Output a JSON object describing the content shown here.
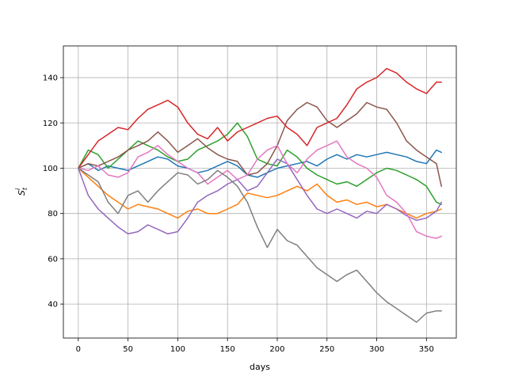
{
  "chart_data": {
    "type": "line",
    "title": "",
    "xlabel": "days",
    "ylabel_base": "S",
    "ylabel_sub": "t",
    "ylabel_sup": "i",
    "xlim": [
      -15,
      380
    ],
    "ylim": [
      25,
      154
    ],
    "xticks": [
      0,
      50,
      100,
      150,
      200,
      250,
      300,
      350
    ],
    "yticks": [
      40,
      60,
      80,
      100,
      120,
      140
    ],
    "grid": true,
    "legend": "none",
    "series": [
      {
        "color": "#1f77b4",
        "x": [
          0,
          10,
          20,
          30,
          40,
          50,
          60,
          70,
          80,
          90,
          100,
          110,
          120,
          130,
          140,
          150,
          160,
          170,
          180,
          190,
          200,
          210,
          220,
          230,
          240,
          250,
          260,
          270,
          280,
          290,
          300,
          310,
          320,
          330,
          340,
          350,
          360,
          365
        ],
        "y": [
          100,
          102,
          99,
          101,
          100,
          99,
          101,
          103,
          105,
          104,
          101,
          100,
          98,
          99,
          101,
          103,
          101,
          97,
          96,
          98,
          100,
          101,
          102,
          103,
          101,
          104,
          106,
          104,
          106,
          105,
          106,
          107,
          106,
          105,
          103,
          102,
          108,
          107
        ]
      },
      {
        "color": "#ff7f0e",
        "x": [
          0,
          10,
          20,
          30,
          40,
          50,
          60,
          70,
          80,
          90,
          100,
          110,
          120,
          130,
          140,
          150,
          160,
          170,
          180,
          190,
          200,
          210,
          220,
          230,
          240,
          250,
          260,
          270,
          280,
          290,
          300,
          310,
          320,
          330,
          340,
          350,
          360,
          365
        ],
        "y": [
          100,
          96,
          92,
          88,
          85,
          82,
          84,
          83,
          82,
          80,
          78,
          81,
          82,
          80,
          80,
          82,
          84,
          89,
          88,
          87,
          88,
          90,
          92,
          90,
          93,
          88,
          85,
          86,
          84,
          85,
          83,
          84,
          82,
          80,
          78,
          80,
          81,
          82
        ]
      },
      {
        "color": "#2ca02c",
        "x": [
          0,
          10,
          20,
          30,
          40,
          50,
          60,
          70,
          80,
          90,
          100,
          110,
          120,
          130,
          140,
          150,
          160,
          170,
          180,
          190,
          200,
          210,
          220,
          230,
          240,
          250,
          260,
          270,
          280,
          290,
          300,
          310,
          320,
          330,
          340,
          350,
          360,
          365
        ],
        "y": [
          100,
          108,
          106,
          100,
          104,
          108,
          112,
          110,
          108,
          105,
          103,
          104,
          108,
          110,
          112,
          115,
          120,
          114,
          104,
          102,
          101,
          108,
          105,
          100,
          97,
          95,
          93,
          94,
          92,
          95,
          98,
          100,
          99,
          97,
          95,
          92,
          85,
          84
        ]
      },
      {
        "color": "#d62728",
        "x": [
          0,
          10,
          20,
          30,
          40,
          50,
          60,
          70,
          80,
          90,
          100,
          110,
          120,
          130,
          140,
          150,
          160,
          170,
          180,
          190,
          200,
          210,
          220,
          230,
          240,
          250,
          260,
          270,
          280,
          290,
          300,
          310,
          320,
          330,
          340,
          350,
          360,
          365
        ],
        "y": [
          100,
          106,
          112,
          115,
          118,
          117,
          122,
          126,
          128,
          130,
          127,
          120,
          115,
          113,
          118,
          112,
          116,
          118,
          120,
          122,
          123,
          118,
          115,
          110,
          118,
          120,
          122,
          128,
          135,
          138,
          140,
          144,
          142,
          138,
          135,
          133,
          138,
          138
        ]
      },
      {
        "color": "#8c564b",
        "x": [
          0,
          10,
          20,
          30,
          40,
          50,
          60,
          70,
          80,
          90,
          100,
          110,
          120,
          130,
          140,
          150,
          160,
          170,
          180,
          190,
          200,
          210,
          220,
          230,
          240,
          250,
          260,
          270,
          280,
          290,
          300,
          310,
          320,
          330,
          340,
          350,
          360,
          365
        ],
        "y": [
          100,
          102,
          101,
          103,
          105,
          108,
          110,
          112,
          116,
          112,
          107,
          110,
          113,
          109,
          106,
          104,
          103,
          97,
          98,
          102,
          110,
          121,
          126,
          129,
          127,
          121,
          118,
          121,
          124,
          129,
          127,
          126,
          120,
          112,
          108,
          105,
          102,
          92
        ]
      },
      {
        "color": "#9467bd",
        "x": [
          0,
          10,
          20,
          30,
          40,
          50,
          60,
          70,
          80,
          90,
          100,
          110,
          120,
          130,
          140,
          150,
          160,
          170,
          180,
          190,
          200,
          210,
          220,
          230,
          240,
          250,
          260,
          270,
          280,
          290,
          300,
          310,
          320,
          330,
          340,
          350,
          360,
          365
        ],
        "y": [
          100,
          88,
          82,
          78,
          74,
          71,
          72,
          75,
          73,
          71,
          72,
          78,
          85,
          88,
          90,
          93,
          95,
          90,
          92,
          98,
          104,
          102,
          95,
          88,
          82,
          80,
          82,
          80,
          78,
          81,
          80,
          84,
          82,
          79,
          77,
          78,
          81,
          85
        ]
      },
      {
        "color": "#e377c2",
        "x": [
          0,
          10,
          20,
          30,
          40,
          50,
          60,
          70,
          80,
          90,
          100,
          110,
          120,
          130,
          140,
          150,
          160,
          170,
          180,
          190,
          200,
          210,
          220,
          230,
          240,
          250,
          260,
          270,
          280,
          290,
          300,
          310,
          320,
          330,
          340,
          350,
          360,
          365
        ],
        "y": [
          100,
          99,
          101,
          97,
          96,
          98,
          105,
          107,
          110,
          106,
          103,
          100,
          98,
          93,
          96,
          99,
          95,
          97,
          104,
          108,
          110,
          102,
          98,
          104,
          108,
          110,
          112,
          105,
          102,
          100,
          96,
          88,
          85,
          80,
          72,
          70,
          69,
          70
        ]
      },
      {
        "color": "#7f7f7f",
        "x": [
          0,
          10,
          20,
          30,
          40,
          50,
          60,
          70,
          80,
          90,
          100,
          110,
          120,
          130,
          140,
          150,
          160,
          170,
          180,
          190,
          200,
          210,
          220,
          230,
          240,
          250,
          260,
          270,
          280,
          290,
          300,
          310,
          320,
          330,
          340,
          350,
          360,
          365
        ],
        "y": [
          100,
          97,
          94,
          85,
          80,
          88,
          90,
          85,
          90,
          94,
          98,
          97,
          93,
          95,
          99,
          96,
          92,
          85,
          74,
          65,
          73,
          68,
          66,
          61,
          56,
          53,
          50,
          53,
          55,
          50,
          45,
          41,
          38,
          35,
          32,
          36,
          37,
          37
        ]
      }
    ]
  }
}
